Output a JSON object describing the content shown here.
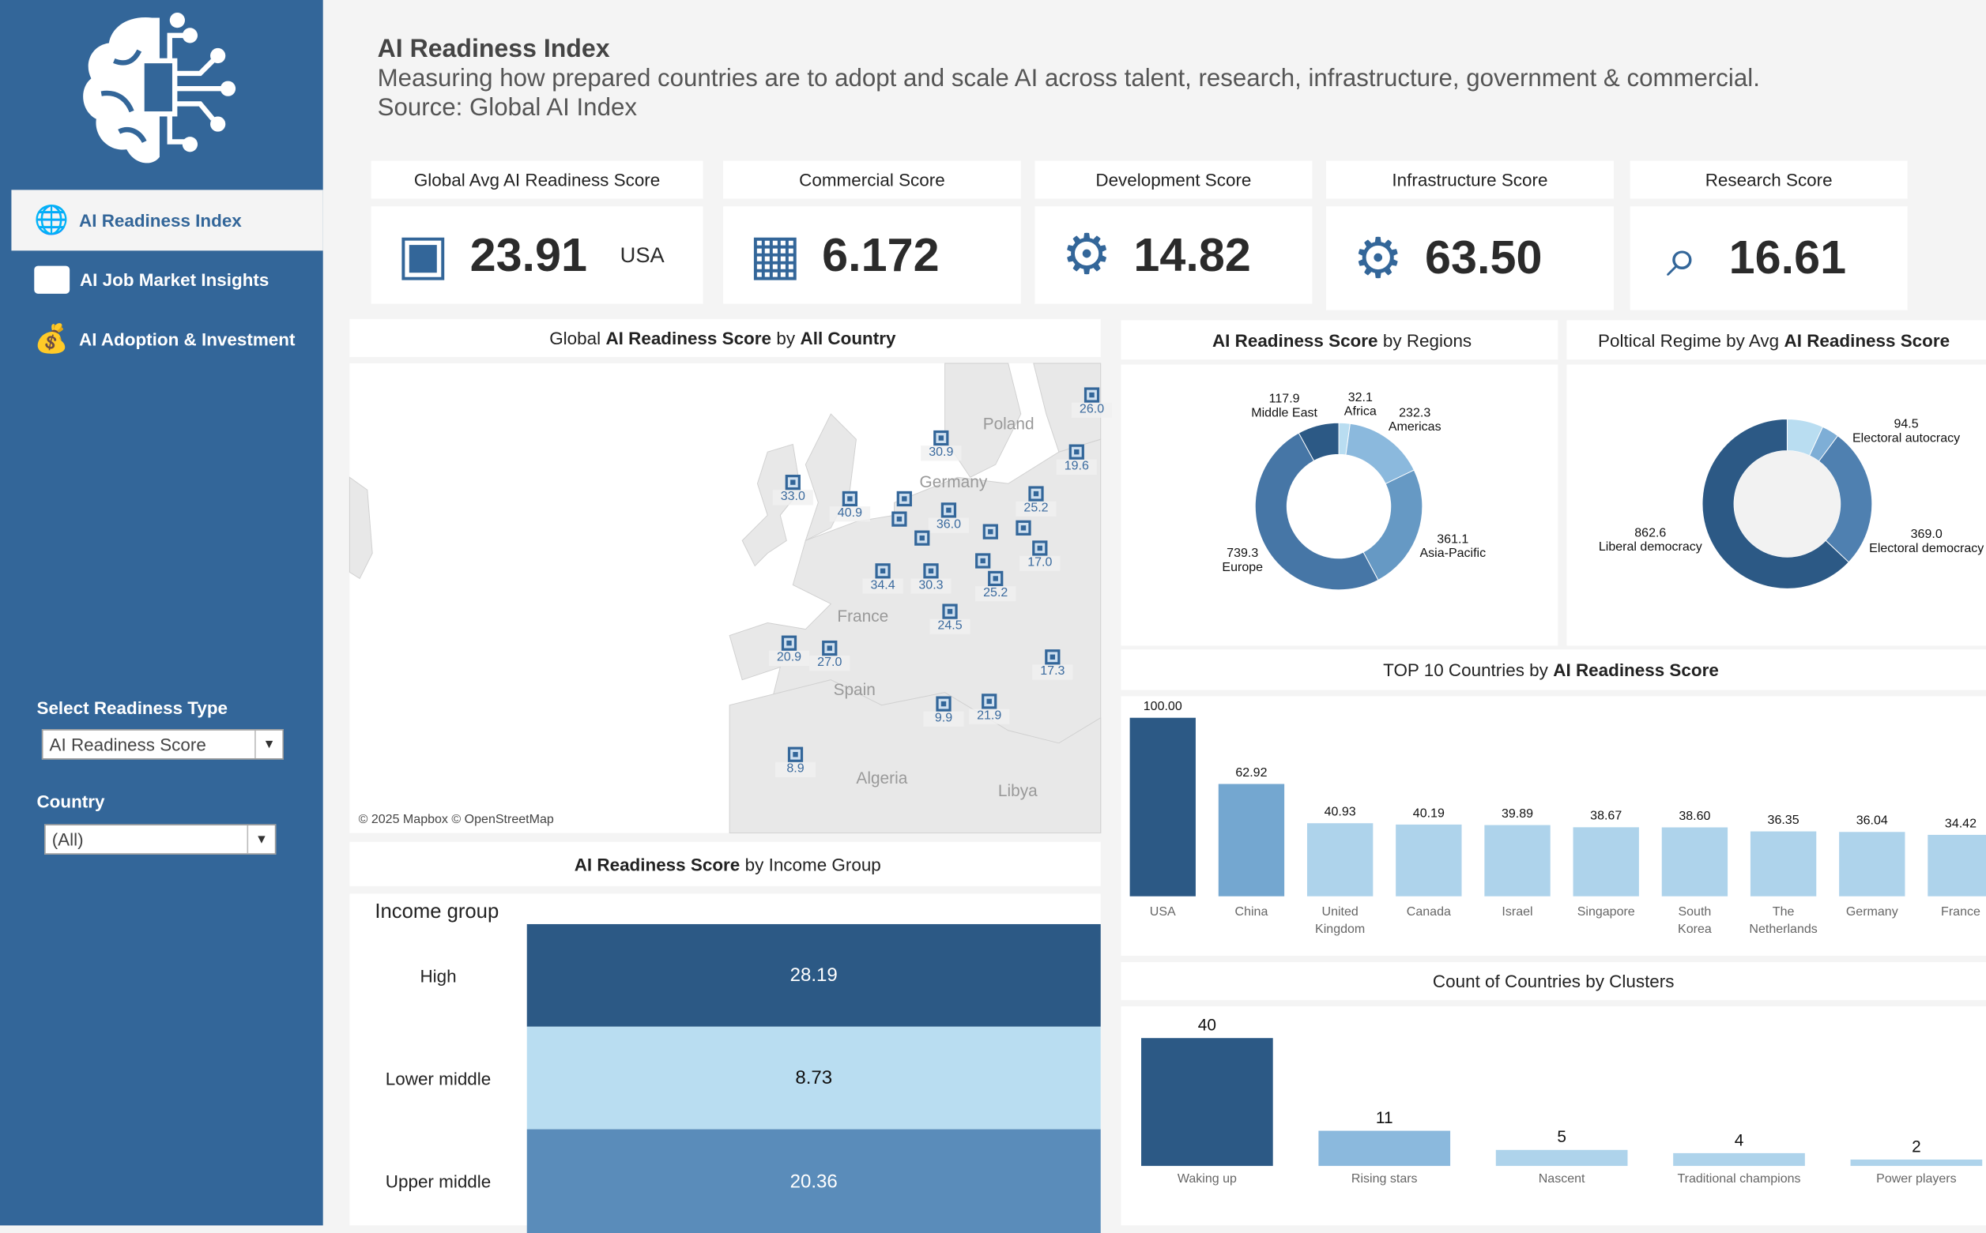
{
  "sidebar": {
    "nav": [
      {
        "label": "AI Readiness Index",
        "active": true
      },
      {
        "label": "AI Job Market Insights"
      },
      {
        "label": "AI  Adoption & Investment"
      }
    ],
    "filters": {
      "readiness_label": "Select Readiness Type",
      "readiness_value": "AI Readiness Score",
      "country_label": "Country",
      "country_value": "(All)"
    }
  },
  "header": {
    "title": "AI Readiness Index",
    "subtitle": "Measuring how prepared countries are to adopt and scale AI across talent, research, infrastructure, government & commercial.",
    "source": "Source: Global AI Index"
  },
  "kpis": [
    {
      "title": "Global Avg AI Readiness Score",
      "value": "23.91",
      "extra": "USA",
      "icon": "ai-chip-icon"
    },
    {
      "title": "Commercial Score",
      "value": "6.172",
      "icon": "building-icon"
    },
    {
      "title": "Development Score",
      "value": "14.82",
      "icon": "growth-gear-icon"
    },
    {
      "title": "Infrastructure Score",
      "value": "63.50",
      "icon": "city-gear-icon"
    },
    {
      "title": "Research Score",
      "value": "16.61",
      "icon": "magnifier-chart-icon"
    }
  ],
  "map": {
    "title_pre": "Global",
    "title_bold": "AI Readiness Score",
    "title_mid": "by",
    "title_bold2": "All Country",
    "attribution": "© 2025 Mapbox © OpenStreetMap",
    "place_labels": [
      "Germany",
      "Poland",
      "France",
      "Spain",
      "Algeria",
      "Libya"
    ],
    "markers": [
      "26.0",
      "30.9",
      "19.6",
      "33.0",
      "40.9",
      "36.0",
      "25.2",
      "17.0",
      "34.4",
      "30.3",
      "25.2",
      "24.5",
      "20.9",
      "27.0",
      "17.3",
      "9.9",
      "21.9",
      "8.9",
      "",
      "",
      "",
      "",
      "",
      ""
    ]
  },
  "chart_data": [
    {
      "type": "bar",
      "title_bold": "AI Readiness Score",
      "title": "by Income Group",
      "col_header": "Income group",
      "categories": [
        "High",
        "Lower middle",
        "Upper middle"
      ],
      "values": [
        28.19,
        8.73,
        20.36
      ],
      "labels": [
        "28.19",
        "8.73",
        "20.36"
      ],
      "colors": [
        "#2c5985",
        "#b9ddf1",
        "#5a8cba"
      ]
    },
    {
      "type": "pie",
      "title_bold": "AI Readiness Score",
      "title": "by Regions",
      "slices": [
        {
          "label": "Africa",
          "value": 32.1,
          "text": "32.1",
          "color": "#b9ddf1"
        },
        {
          "label": "Americas",
          "value": 232.3,
          "text": "232.3",
          "color": "#8bb9dd"
        },
        {
          "label": "Asia-Pacific",
          "value": 361.1,
          "text": "361.1",
          "color": "#6699c4"
        },
        {
          "label": "Europe",
          "value": 739.3,
          "text": "739.3",
          "color": "#4676a6"
        },
        {
          "label": "Middle East",
          "value": 117.9,
          "text": "117.9",
          "color": "#2c5985"
        }
      ]
    },
    {
      "type": "pie",
      "title": "Poltical Regime by Avg",
      "title_bold": "AI Readiness Score",
      "slices": [
        {
          "label": "Electoral autocracy",
          "value": 94.5,
          "text": "94.5",
          "color": "#b9ddf1"
        },
        {
          "label": "",
          "value": 45,
          "text": "",
          "color": "#7eaed6"
        },
        {
          "label": "Electoral democracy",
          "value": 369.0,
          "text": "369.0",
          "color": "#4f80b0"
        },
        {
          "label": "Liberal democracy",
          "value": 862.6,
          "text": "862.6",
          "color": "#2c5985"
        }
      ]
    },
    {
      "type": "bar",
      "title": "TOP 10 Countries by",
      "title_bold": "AI Readiness Score",
      "categories": [
        "USA",
        "China",
        "United Kingdom",
        "Canada",
        "Israel",
        "Singapore",
        "South Korea",
        "The Netherlands",
        "Germany",
        "France"
      ],
      "values": [
        100.0,
        62.92,
        40.93,
        40.19,
        39.89,
        38.67,
        38.6,
        36.35,
        36.04,
        34.42
      ],
      "labels": [
        "100.00",
        "62.92",
        "40.93",
        "40.19",
        "39.89",
        "38.67",
        "38.60",
        "36.35",
        "36.04",
        "34.42"
      ],
      "colors": [
        "#2c5985",
        "#74a7d0",
        "#aed3eb"
      ],
      "ylim": [
        0,
        100
      ]
    },
    {
      "type": "bar",
      "title": "Count of Countries by Clusters",
      "categories": [
        "Waking up",
        "Rising stars",
        "Nascent",
        "Traditional champions",
        "Power players"
      ],
      "values": [
        40,
        11,
        5,
        4,
        2
      ],
      "labels": [
        "40",
        "11",
        "5",
        "4",
        "2"
      ],
      "colors": [
        "#2c5985",
        "#8bb9dd",
        "#aed3eb",
        "#aed3eb",
        "#aed3eb"
      ],
      "ylim": [
        0,
        40
      ]
    }
  ]
}
